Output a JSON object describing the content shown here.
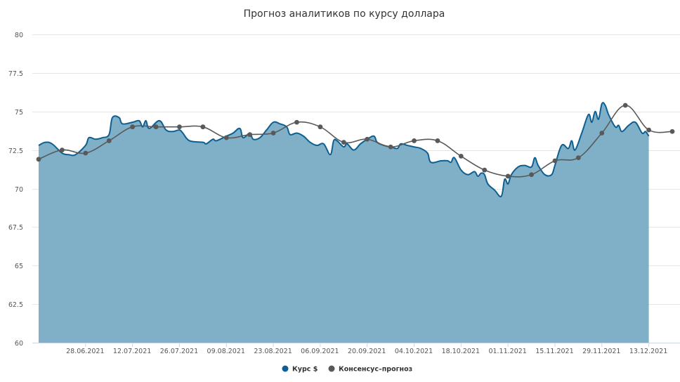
{
  "chart_data": {
    "type": "area",
    "title": "Прогноз аналитиков по курсу доллара",
    "xlabel": "",
    "ylabel": "",
    "ylim": [
      60,
      80
    ],
    "yticks": [
      60,
      62.5,
      65,
      67.5,
      70,
      72.5,
      75,
      77.5,
      80
    ],
    "grid": true,
    "legend_position": "bottom-center",
    "x_tick_labels": [
      "28.06.2021",
      "12.07.2021",
      "26.07.2021",
      "09.08.2021",
      "23.08.2021",
      "06.09.2021",
      "20.09.2021",
      "04.10.2021",
      "18.10.2021",
      "01.11.2021",
      "15.11.2021",
      "29.11.2021",
      "13.12.2021"
    ],
    "x_tick_dates": [
      "2021-06-28",
      "2021-07-12",
      "2021-07-26",
      "2021-08-09",
      "2021-08-23",
      "2021-09-06",
      "2021-09-20",
      "2021-10-04",
      "2021-10-18",
      "2021-11-01",
      "2021-11-15",
      "2021-11-29",
      "2021-12-13"
    ],
    "x_range": [
      "2021-06-14",
      "2021-12-20"
    ],
    "series": [
      {
        "name": "Курс $",
        "type": "area",
        "color": "#0d5f91",
        "fill": "#7fb0c8",
        "points": [
          {
            "x": "2021-06-14",
            "y": 72.8
          },
          {
            "x": "2021-06-16",
            "y": 73.0
          },
          {
            "x": "2021-06-18",
            "y": 72.9
          },
          {
            "x": "2021-06-21",
            "y": 72.3
          },
          {
            "x": "2021-06-23",
            "y": 72.2
          },
          {
            "x": "2021-06-25",
            "y": 72.2
          },
          {
            "x": "2021-06-28",
            "y": 72.8
          },
          {
            "x": "2021-06-29",
            "y": 73.3
          },
          {
            "x": "2021-07-01",
            "y": 73.2
          },
          {
            "x": "2021-07-03",
            "y": 73.3
          },
          {
            "x": "2021-07-05",
            "y": 73.5
          },
          {
            "x": "2021-07-06",
            "y": 74.6
          },
          {
            "x": "2021-07-08",
            "y": 74.6
          },
          {
            "x": "2021-07-09",
            "y": 74.2
          },
          {
            "x": "2021-07-12",
            "y": 74.3
          },
          {
            "x": "2021-07-14",
            "y": 74.4
          },
          {
            "x": "2021-07-15",
            "y": 74.0
          },
          {
            "x": "2021-07-16",
            "y": 74.4
          },
          {
            "x": "2021-07-17",
            "y": 73.9
          },
          {
            "x": "2021-07-20",
            "y": 74.4
          },
          {
            "x": "2021-07-22",
            "y": 73.8
          },
          {
            "x": "2021-07-24",
            "y": 73.7
          },
          {
            "x": "2021-07-26",
            "y": 73.8
          },
          {
            "x": "2021-07-27",
            "y": 73.6
          },
          {
            "x": "2021-07-29",
            "y": 73.1
          },
          {
            "x": "2021-08-02",
            "y": 73.0
          },
          {
            "x": "2021-08-03",
            "y": 72.9
          },
          {
            "x": "2021-08-05",
            "y": 73.2
          },
          {
            "x": "2021-08-06",
            "y": 73.1
          },
          {
            "x": "2021-08-09",
            "y": 73.4
          },
          {
            "x": "2021-08-11",
            "y": 73.6
          },
          {
            "x": "2021-08-13",
            "y": 73.9
          },
          {
            "x": "2021-08-14",
            "y": 73.3
          },
          {
            "x": "2021-08-16",
            "y": 73.6
          },
          {
            "x": "2021-08-17",
            "y": 73.2
          },
          {
            "x": "2021-08-19",
            "y": 73.3
          },
          {
            "x": "2021-08-21",
            "y": 73.8
          },
          {
            "x": "2021-08-23",
            "y": 74.3
          },
          {
            "x": "2021-08-25",
            "y": 74.2
          },
          {
            "x": "2021-08-27",
            "y": 74.0
          },
          {
            "x": "2021-08-28",
            "y": 73.5
          },
          {
            "x": "2021-08-30",
            "y": 73.6
          },
          {
            "x": "2021-09-01",
            "y": 73.4
          },
          {
            "x": "2021-09-03",
            "y": 73.0
          },
          {
            "x": "2021-09-05",
            "y": 72.8
          },
          {
            "x": "2021-09-07",
            "y": 72.9
          },
          {
            "x": "2021-09-09",
            "y": 72.2
          },
          {
            "x": "2021-09-10",
            "y": 73.1
          },
          {
            "x": "2021-09-11",
            "y": 73.1
          },
          {
            "x": "2021-09-13",
            "y": 72.7
          },
          {
            "x": "2021-09-14",
            "y": 72.9
          },
          {
            "x": "2021-09-16",
            "y": 72.5
          },
          {
            "x": "2021-09-18",
            "y": 72.9
          },
          {
            "x": "2021-09-20",
            "y": 73.2
          },
          {
            "x": "2021-09-22",
            "y": 73.4
          },
          {
            "x": "2021-09-23",
            "y": 73.0
          },
          {
            "x": "2021-09-25",
            "y": 72.8
          },
          {
            "x": "2021-09-27",
            "y": 72.7
          },
          {
            "x": "2021-09-29",
            "y": 72.6
          },
          {
            "x": "2021-09-30",
            "y": 72.9
          },
          {
            "x": "2021-10-02",
            "y": 72.8
          },
          {
            "x": "2021-10-04",
            "y": 72.7
          },
          {
            "x": "2021-10-06",
            "y": 72.6
          },
          {
            "x": "2021-10-08",
            "y": 72.3
          },
          {
            "x": "2021-10-09",
            "y": 71.7
          },
          {
            "x": "2021-10-12",
            "y": 71.8
          },
          {
            "x": "2021-10-14",
            "y": 71.8
          },
          {
            "x": "2021-10-15",
            "y": 71.7
          },
          {
            "x": "2021-10-16",
            "y": 72.0
          },
          {
            "x": "2021-10-18",
            "y": 71.2
          },
          {
            "x": "2021-10-20",
            "y": 70.9
          },
          {
            "x": "2021-10-22",
            "y": 71.1
          },
          {
            "x": "2021-10-23",
            "y": 70.8
          },
          {
            "x": "2021-10-24",
            "y": 71.0
          },
          {
            "x": "2021-10-25",
            "y": 70.9
          },
          {
            "x": "2021-10-26",
            "y": 70.3
          },
          {
            "x": "2021-10-28",
            "y": 69.9
          },
          {
            "x": "2021-10-30",
            "y": 69.5
          },
          {
            "x": "2021-10-31",
            "y": 70.6
          },
          {
            "x": "2021-11-01",
            "y": 70.3
          },
          {
            "x": "2021-11-02",
            "y": 70.9
          },
          {
            "x": "2021-11-04",
            "y": 71.4
          },
          {
            "x": "2021-11-06",
            "y": 71.5
          },
          {
            "x": "2021-11-08",
            "y": 71.4
          },
          {
            "x": "2021-11-09",
            "y": 72.0
          },
          {
            "x": "2021-11-10",
            "y": 71.5
          },
          {
            "x": "2021-11-12",
            "y": 70.9
          },
          {
            "x": "2021-11-14",
            "y": 70.9
          },
          {
            "x": "2021-11-15",
            "y": 71.5
          },
          {
            "x": "2021-11-17",
            "y": 72.8
          },
          {
            "x": "2021-11-19",
            "y": 72.6
          },
          {
            "x": "2021-11-20",
            "y": 73.1
          },
          {
            "x": "2021-11-21",
            "y": 72.5
          },
          {
            "x": "2021-11-23",
            "y": 73.6
          },
          {
            "x": "2021-11-25",
            "y": 74.8
          },
          {
            "x": "2021-11-26",
            "y": 74.3
          },
          {
            "x": "2021-11-27",
            "y": 75.0
          },
          {
            "x": "2021-11-28",
            "y": 74.5
          },
          {
            "x": "2021-11-29",
            "y": 75.5
          },
          {
            "x": "2021-11-30",
            "y": 75.4
          },
          {
            "x": "2021-12-01",
            "y": 74.8
          },
          {
            "x": "2021-12-03",
            "y": 74.0
          },
          {
            "x": "2021-12-04",
            "y": 74.1
          },
          {
            "x": "2021-12-05",
            "y": 73.7
          },
          {
            "x": "2021-12-07",
            "y": 74.1
          },
          {
            "x": "2021-12-09",
            "y": 74.3
          },
          {
            "x": "2021-12-11",
            "y": 73.6
          },
          {
            "x": "2021-12-12",
            "y": 73.7
          },
          {
            "x": "2021-12-13",
            "y": 73.4
          }
        ]
      },
      {
        "name": "Консенсус–прогноз",
        "type": "line",
        "color": "#595959",
        "points": [
          {
            "x": "2021-06-14",
            "y": 71.9
          },
          {
            "x": "2021-06-21",
            "y": 72.5
          },
          {
            "x": "2021-06-28",
            "y": 72.3
          },
          {
            "x": "2021-07-05",
            "y": 73.1
          },
          {
            "x": "2021-07-12",
            "y": 74.0
          },
          {
            "x": "2021-07-19",
            "y": 74.0
          },
          {
            "x": "2021-07-26",
            "y": 74.0
          },
          {
            "x": "2021-08-02",
            "y": 74.0
          },
          {
            "x": "2021-08-09",
            "y": 73.3
          },
          {
            "x": "2021-08-16",
            "y": 73.5
          },
          {
            "x": "2021-08-23",
            "y": 73.6
          },
          {
            "x": "2021-08-30",
            "y": 74.3
          },
          {
            "x": "2021-09-06",
            "y": 74.0
          },
          {
            "x": "2021-09-13",
            "y": 73.0
          },
          {
            "x": "2021-09-20",
            "y": 73.2
          },
          {
            "x": "2021-09-27",
            "y": 72.7
          },
          {
            "x": "2021-10-04",
            "y": 73.1
          },
          {
            "x": "2021-10-11",
            "y": 73.1
          },
          {
            "x": "2021-10-18",
            "y": 72.1
          },
          {
            "x": "2021-10-25",
            "y": 71.2
          },
          {
            "x": "2021-11-01",
            "y": 70.8
          },
          {
            "x": "2021-11-08",
            "y": 70.9
          },
          {
            "x": "2021-11-15",
            "y": 71.8
          },
          {
            "x": "2021-11-22",
            "y": 72.0
          },
          {
            "x": "2021-11-29",
            "y": 73.6
          },
          {
            "x": "2021-12-06",
            "y": 75.4
          },
          {
            "x": "2021-12-13",
            "y": 73.8
          },
          {
            "x": "2021-12-20",
            "y": 73.7
          }
        ]
      }
    ]
  }
}
